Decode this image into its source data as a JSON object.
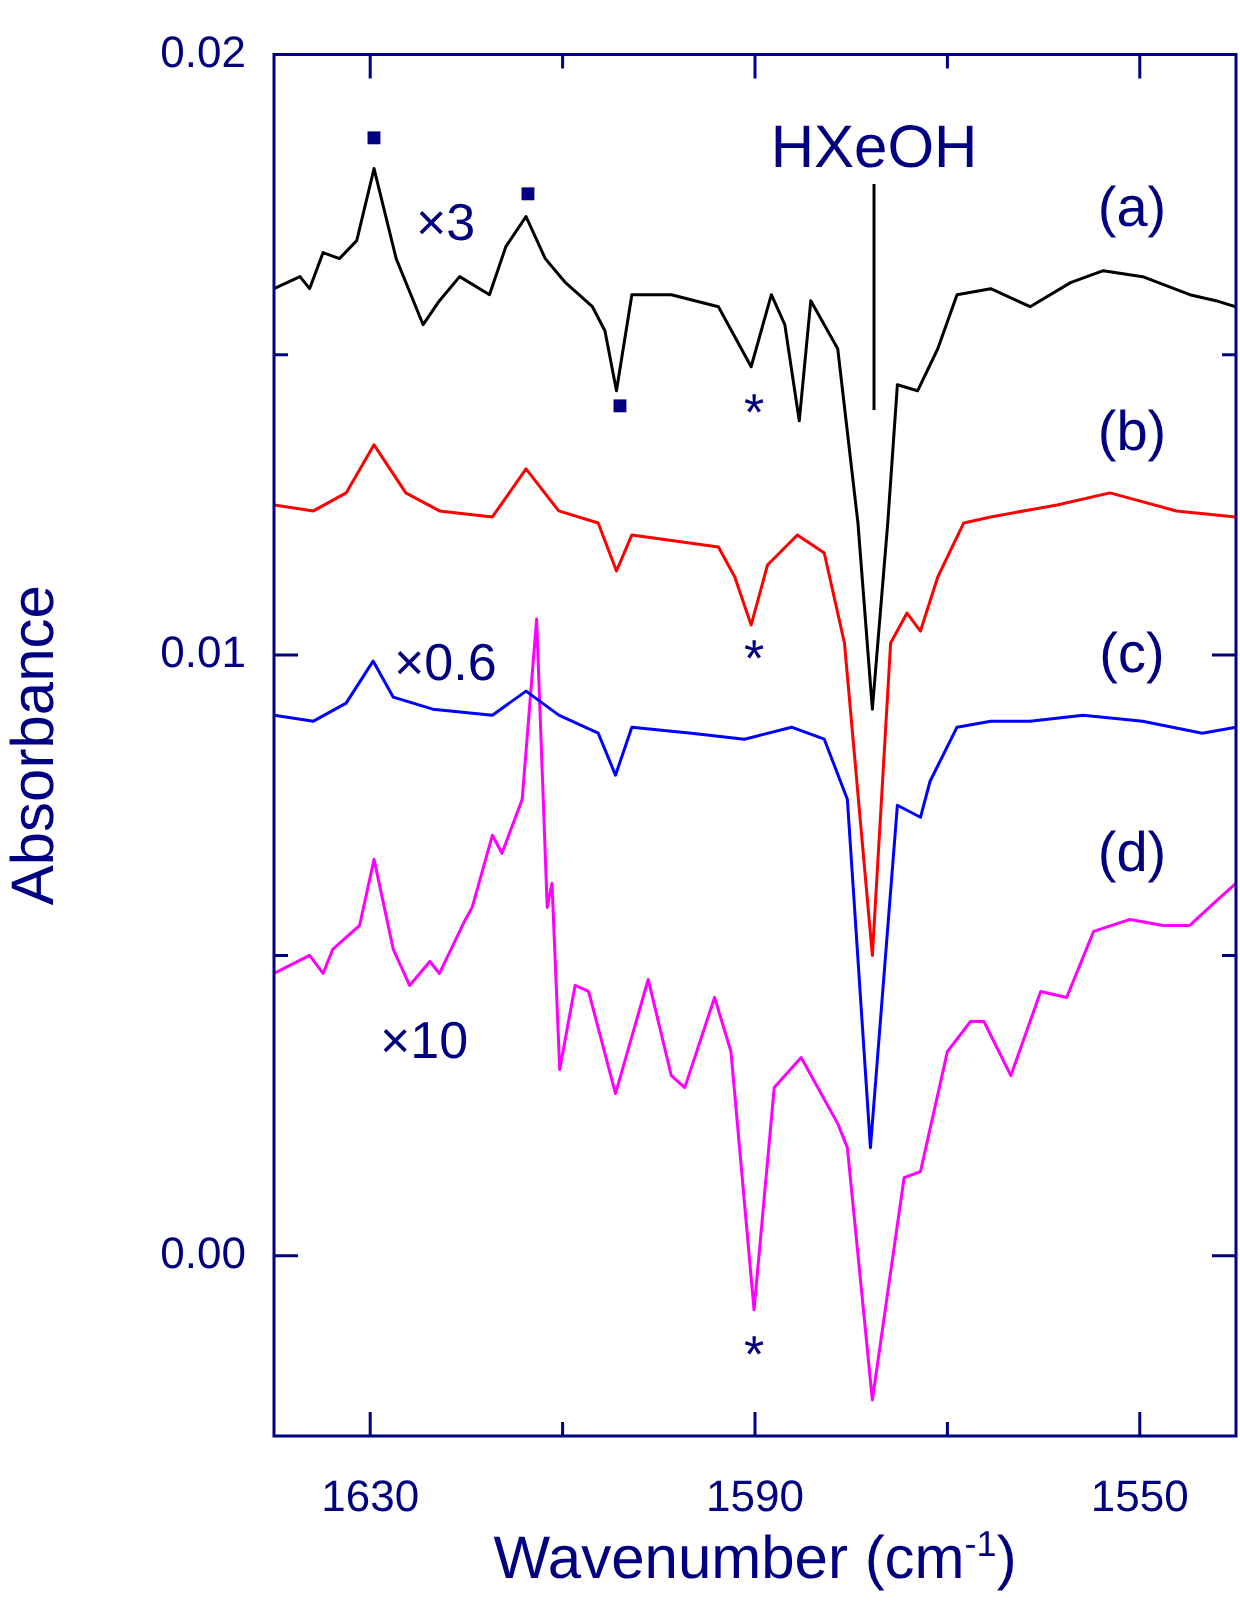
{
  "chart_data": {
    "type": "line",
    "xlabel": "Wavenumber (cm$^{-1}$)",
    "ylabel": "Absorbance",
    "xlim": [
      1640,
      1540
    ],
    "ylim": [
      -0.003,
      0.02
    ],
    "xticks": [
      1630,
      {
        "value": 1610,
        "label": null
      },
      1590,
      {
        "value": 1570,
        "label": null
      },
      1550
    ],
    "yticks": [
      {
        "value": 0,
        "label": "0.00"
      },
      {
        "value": 0.005,
        "label": null
      },
      0.01,
      {
        "value": 0.015,
        "label": null
      },
      0.02
    ],
    "grid": false,
    "legend": false,
    "marker": "none",
    "line_style": "solid",
    "series": [
      {
        "name": "(a)",
        "color": "#000000",
        "x": [
          1640,
          1637.3,
          1636.3,
          1634.9,
          1633.2,
          1631.4,
          1629.6,
          1627.3,
          1624.5,
          1622.8,
          1620.7,
          1617.6,
          1615.9,
          1613.8,
          1611.8,
          1609.7,
          1606.9,
          1605.6,
          1604.4,
          1602.8,
          1598.7,
          1593.8,
          1592.1,
          1590.4,
          1588.3,
          1586.9,
          1585.4,
          1584.2,
          1581.4,
          1579.3,
          1577.8,
          1576.2,
          1575.2,
          1573.1,
          1571,
          1569,
          1565.5,
          1561.4,
          1557.2,
          1553.8,
          1549.7,
          1544.8,
          1542.1,
          1540
        ],
        "values": [
          0.0161,
          0.0163,
          0.0161,
          0.0167,
          0.0166,
          0.0169,
          0.0181,
          0.0166,
          0.0155,
          0.0159,
          0.0163,
          0.016,
          0.0168,
          0.0173,
          0.0166,
          0.0162,
          0.0158,
          0.0154,
          0.0144,
          0.016,
          0.016,
          0.0158,
          0.0153,
          0.0148,
          0.016,
          0.0155,
          0.0139,
          0.0159,
          0.0151,
          0.0122,
          0.0091,
          0.0122,
          0.0145,
          0.0144,
          0.0151,
          0.016,
          0.0161,
          0.0158,
          0.0162,
          0.0164,
          0.0163,
          0.016,
          0.0159,
          0.0158
        ]
      },
      {
        "name": "(b)",
        "color": "#ff0000",
        "x": [
          1640,
          1635.9,
          1632.5,
          1629.6,
          1626.3,
          1622.8,
          1617.3,
          1613.8,
          1610.4,
          1606.3,
          1604.4,
          1602.8,
          1593.8,
          1592.1,
          1590.4,
          1588.7,
          1585.6,
          1582.8,
          1580.7,
          1577.8,
          1575.9,
          1574.2,
          1572.8,
          1571,
          1568.3,
          1565.5,
          1558.6,
          1553.1,
          1546.2,
          1540
        ],
        "values": [
          0.0125,
          0.0124,
          0.0127,
          0.0135,
          0.0127,
          0.0124,
          0.0123,
          0.0131,
          0.0124,
          0.0122,
          0.0114,
          0.012,
          0.0118,
          0.0113,
          0.0105,
          0.0115,
          0.012,
          0.0117,
          0.0102,
          0.005,
          0.0102,
          0.0107,
          0.0104,
          0.0113,
          0.0122,
          0.0123,
          0.0125,
          0.0127,
          0.0124,
          0.0123
        ]
      },
      {
        "name": "(c)",
        "color": "#0000ff",
        "x": [
          1640,
          1635.9,
          1632.5,
          1629.7,
          1627.6,
          1623.5,
          1617.3,
          1613.8,
          1610.4,
          1606.3,
          1604.5,
          1602.8,
          1596.6,
          1591.1,
          1586.2,
          1582.8,
          1580.4,
          1578,
          1575.2,
          1572.8,
          1571.8,
          1569,
          1565.5,
          1561.4,
          1555.9,
          1549.7,
          1543.5,
          1540
        ],
        "values": [
          0.009,
          0.0089,
          0.0092,
          0.0099,
          0.0093,
          0.0091,
          0.009,
          0.0094,
          0.009,
          0.0087,
          0.008,
          0.0088,
          0.0087,
          0.0086,
          0.0088,
          0.0086,
          0.0076,
          0.0018,
          0.0075,
          0.0073,
          0.0079,
          0.0088,
          0.0089,
          0.0089,
          0.009,
          0.0089,
          0.0087,
          0.0088
        ]
      },
      {
        "name": "(d)",
        "color": "#ff00ff",
        "x": [
          1640,
          1636.3,
          1634.9,
          1633.9,
          1631.1,
          1629.6,
          1627.6,
          1625.9,
          1623.8,
          1622.8,
          1620.1,
          1619.4,
          1617.3,
          1616.3,
          1614.2,
          1612.7,
          1611.6,
          1611.1,
          1610.3,
          1608.7,
          1607.3,
          1604.5,
          1601.1,
          1598.7,
          1597.3,
          1594.2,
          1592.5,
          1590.1,
          1588,
          1585.2,
          1581.4,
          1580.4,
          1577.8,
          1574.5,
          1572.8,
          1570,
          1567.6,
          1566.2,
          1563.4,
          1560.3,
          1557.6,
          1554.8,
          1551,
          1547.6,
          1544.8,
          1542.1,
          1540
        ],
        "values": [
          0.0047,
          0.005,
          0.0047,
          0.0051,
          0.0055,
          0.0066,
          0.0051,
          0.0045,
          0.0049,
          0.0047,
          0.0056,
          0.0058,
          0.007,
          0.0067,
          0.0076,
          0.0106,
          0.0058,
          0.0062,
          0.0031,
          0.0045,
          0.0044,
          0.0027,
          0.0046,
          0.003,
          0.0028,
          0.0043,
          0.0034,
          -0.0009,
          0.0028,
          0.0033,
          0.0022,
          0.0018,
          -0.0024,
          0.0013,
          0.0014,
          0.0034,
          0.0039,
          0.0039,
          0.003,
          0.0044,
          0.0043,
          0.0054,
          0.0056,
          0.0055,
          0.0055,
          0.0059,
          0.0062
        ]
      }
    ],
    "annotations": [
      "HXeOH",
      "×3",
      "×0.6",
      "×10",
      "▪",
      "▪",
      "▪",
      "*",
      "*",
      "*"
    ]
  }
}
